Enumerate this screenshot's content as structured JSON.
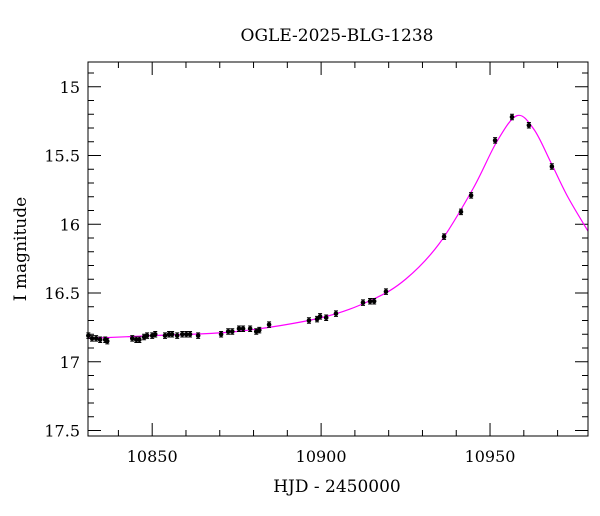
{
  "chart_data": {
    "type": "scatter",
    "title": "OGLE-2025-BLG-1238",
    "xlabel": "HJD - 2450000",
    "ylabel": "I magnitude",
    "xlim": [
      10831,
      10979
    ],
    "ylim": [
      17.54,
      14.82
    ],
    "y_inverted": true,
    "grid": false,
    "x_ticks": [
      10850,
      10900,
      10950
    ],
    "x_tick_labels": [
      "10850",
      "10900",
      "10950"
    ],
    "y_ticks": [
      15,
      15.5,
      16,
      16.5,
      17,
      17.5
    ],
    "y_tick_labels": [
      "15",
      "15.5",
      "16",
      "16.5",
      "17",
      "17.5"
    ],
    "point_color": "#000000",
    "model_color": "#ff00ff",
    "series": [
      {
        "type": "scatter",
        "x": [
          10831.1,
          10832.2,
          10833.4,
          10834.6,
          10836.1,
          10836.7,
          10844.1,
          10845.3,
          10846.2,
          10847.6,
          10848.5,
          10850.0,
          10850.9,
          10853.8,
          10855.0,
          10855.9,
          10857.4,
          10858.9,
          10860.1,
          10861.2,
          10863.6,
          10870.4,
          10872.5,
          10873.7,
          10875.7,
          10876.9,
          10879.0,
          10880.8,
          10881.7,
          10884.6,
          10896.4,
          10898.8,
          10899.7,
          10901.5,
          10904.4,
          10912.4,
          10914.5,
          10915.7,
          10919.2,
          10936.4,
          10941.4,
          10944.4,
          10951.5,
          10956.5,
          10961.5,
          10968.3
        ],
        "y": [
          16.81,
          16.83,
          16.83,
          16.84,
          16.84,
          16.85,
          16.83,
          16.84,
          16.84,
          16.82,
          16.81,
          16.81,
          16.8,
          16.81,
          16.8,
          16.8,
          16.81,
          16.8,
          16.8,
          16.8,
          16.81,
          16.8,
          16.78,
          16.78,
          16.76,
          16.76,
          16.76,
          16.78,
          16.77,
          16.73,
          16.7,
          16.69,
          16.67,
          16.68,
          16.65,
          16.57,
          16.56,
          16.56,
          16.49,
          16.09,
          15.91,
          15.79,
          15.39,
          15.22,
          15.28,
          15.58
        ],
        "yerr": 0.02
      },
      {
        "type": "line",
        "x": [
          10831,
          10850,
          10875,
          10900,
          10915,
          10925,
          10935,
          10945,
          10952,
          10958,
          10963,
          10968,
          10973,
          10979
        ],
        "y": [
          16.83,
          16.81,
          16.78,
          16.68,
          16.55,
          16.4,
          16.14,
          15.74,
          15.4,
          15.21,
          15.31,
          15.55,
          15.8,
          16.05
        ]
      }
    ]
  }
}
